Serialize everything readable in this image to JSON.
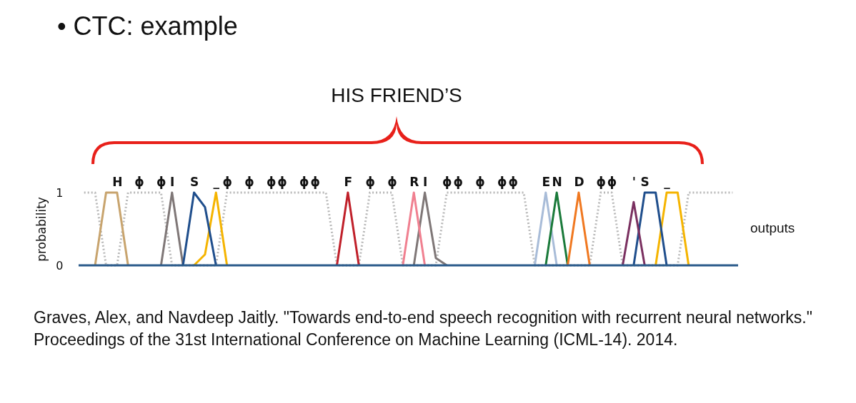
{
  "chart_data": {
    "type": "line",
    "title": "• CTC: example",
    "ylabel": "probability",
    "annotations": [
      "HIS FRIEND’S",
      "outputs",
      "Graves, Alex, and Navdeep Jaitly. \"Towards end-to-end speech recognition with recurrent neural networks.\" Proceedings of the 31st International Conference on Machine Learning (ICML-14). 2014."
    ],
    "ylim": [
      0,
      1
    ],
    "yticks": [
      0,
      1
    ],
    "grid": false,
    "legend": false,
    "ref_lines": [
      {
        "axis": "y",
        "value": 0,
        "color": "#2a5a8a"
      }
    ],
    "categories": [
      null,
      null,
      null,
      "H",
      null,
      "ϕ",
      null,
      "ϕ",
      "I",
      null,
      "S",
      null,
      "_",
      "ϕ",
      null,
      "ϕ",
      null,
      "ϕ",
      "ϕ",
      null,
      "ϕ",
      "ϕ",
      null,
      null,
      "F",
      null,
      "ϕ",
      null,
      "ϕ",
      null,
      "R",
      "I",
      null,
      "ϕ",
      "ϕ",
      null,
      "ϕ",
      null,
      "ϕ",
      "ϕ",
      null,
      null,
      "E",
      "N",
      null,
      "D",
      null,
      "ϕ",
      "ϕ",
      null,
      "'",
      "S",
      null,
      "_",
      null,
      null,
      null,
      null,
      null,
      null
    ],
    "series": [
      {
        "color": "#b8b8b8",
        "line_style": "dotted",
        "values": [
          1,
          1,
          0,
          0,
          1,
          1,
          1,
          1,
          0,
          0,
          0,
          0,
          0,
          1,
          1,
          1,
          1,
          1,
          1,
          1,
          1,
          1,
          1,
          0,
          0,
          0,
          1,
          1,
          1,
          0,
          0,
          0,
          0,
          1,
          1,
          1,
          1,
          1,
          1,
          1,
          1,
          0,
          0,
          0,
          0,
          0,
          0,
          1,
          1,
          0,
          0,
          0,
          0,
          0,
          0,
          1,
          1,
          1,
          1,
          1
        ]
      },
      {
        "color": "#c8a46e",
        "values": [
          null,
          0,
          1,
          1,
          0,
          null,
          null,
          null,
          null,
          null,
          null,
          null,
          null,
          null,
          null,
          null,
          null,
          null,
          null,
          null,
          null,
          null,
          null,
          null,
          null,
          null,
          null,
          null,
          null,
          null,
          null,
          null,
          null,
          null,
          null,
          null,
          null,
          null,
          null,
          null,
          null,
          null,
          null,
          null,
          null,
          null,
          null,
          null,
          null,
          null,
          null,
          null,
          null,
          null,
          null,
          null,
          null,
          null,
          null,
          null
        ]
      },
      {
        "color": "#7f7777",
        "values": [
          null,
          null,
          null,
          null,
          null,
          null,
          null,
          0,
          1,
          0,
          null,
          null,
          null,
          null,
          null,
          null,
          null,
          null,
          null,
          null,
          null,
          null,
          null,
          null,
          null,
          null,
          null,
          null,
          null,
          null,
          0,
          1,
          0.1,
          0,
          null,
          null,
          null,
          null,
          null,
          null,
          null,
          null,
          null,
          null,
          null,
          null,
          null,
          null,
          null,
          null,
          null,
          null,
          null,
          null,
          null,
          null,
          null,
          null,
          null,
          null
        ]
      },
      {
        "color": "#f5b400",
        "values": [
          null,
          null,
          null,
          null,
          null,
          null,
          null,
          null,
          null,
          null,
          0,
          0.15,
          1,
          0,
          null,
          null,
          null,
          null,
          null,
          null,
          null,
          null,
          null,
          null,
          null,
          null,
          null,
          null,
          null,
          null,
          null,
          null,
          null,
          null,
          null,
          null,
          null,
          null,
          null,
          null,
          null,
          null,
          null,
          null,
          null,
          null,
          null,
          null,
          null,
          null,
          null,
          null,
          0,
          1,
          1,
          0,
          null,
          null,
          null,
          null
        ]
      },
      {
        "color": "#1f4e8c",
        "values": [
          null,
          null,
          null,
          null,
          null,
          null,
          null,
          null,
          null,
          0,
          1,
          0.8,
          0,
          null,
          null,
          null,
          null,
          null,
          null,
          null,
          null,
          null,
          null,
          null,
          null,
          null,
          null,
          null,
          null,
          null,
          null,
          null,
          null,
          null,
          null,
          null,
          null,
          null,
          null,
          null,
          null,
          null,
          null,
          null,
          null,
          null,
          null,
          null,
          null,
          null,
          0,
          1,
          1,
          0,
          null,
          null,
          null,
          null,
          null,
          null
        ]
      },
      {
        "color": "#c0202a",
        "values": [
          null,
          null,
          null,
          null,
          null,
          null,
          null,
          null,
          null,
          null,
          null,
          null,
          null,
          null,
          null,
          null,
          null,
          null,
          null,
          null,
          null,
          null,
          null,
          0,
          1,
          0,
          null,
          null,
          null,
          null,
          null,
          null,
          null,
          null,
          null,
          null,
          null,
          null,
          null,
          null,
          null,
          null,
          null,
          null,
          null,
          null,
          null,
          null,
          null,
          null,
          null,
          null,
          null,
          null,
          null,
          null,
          null,
          null,
          null,
          null
        ]
      },
      {
        "color": "#f08090",
        "values": [
          null,
          null,
          null,
          null,
          null,
          null,
          null,
          null,
          null,
          null,
          null,
          null,
          null,
          null,
          null,
          null,
          null,
          null,
          null,
          null,
          null,
          null,
          null,
          null,
          null,
          null,
          null,
          null,
          null,
          0,
          1,
          0,
          null,
          null,
          null,
          null,
          null,
          null,
          null,
          null,
          null,
          null,
          null,
          null,
          null,
          null,
          null,
          null,
          null,
          null,
          null,
          null,
          null,
          null,
          null,
          null,
          null,
          null,
          null,
          null
        ]
      },
      {
        "color": "#a8bcd8",
        "values": [
          null,
          null,
          null,
          null,
          null,
          null,
          null,
          null,
          null,
          null,
          null,
          null,
          null,
          null,
          null,
          null,
          null,
          null,
          null,
          null,
          null,
          null,
          null,
          null,
          null,
          null,
          null,
          null,
          null,
          null,
          null,
          null,
          null,
          null,
          null,
          null,
          null,
          null,
          null,
          null,
          null,
          0,
          1,
          0,
          null,
          null,
          null,
          null,
          null,
          null,
          null,
          null,
          null,
          null,
          null,
          null,
          null,
          null,
          null,
          null
        ]
      },
      {
        "color": "#1a7a3a",
        "values": [
          null,
          null,
          null,
          null,
          null,
          null,
          null,
          null,
          null,
          null,
          null,
          null,
          null,
          null,
          null,
          null,
          null,
          null,
          null,
          null,
          null,
          null,
          null,
          null,
          null,
          null,
          null,
          null,
          null,
          null,
          null,
          null,
          null,
          null,
          null,
          null,
          null,
          null,
          null,
          null,
          null,
          null,
          0,
          1,
          0,
          null,
          null,
          null,
          null,
          null,
          null,
          null,
          null,
          null,
          null,
          null,
          null,
          null,
          null,
          null
        ]
      },
      {
        "color": "#f07820",
        "values": [
          null,
          null,
          null,
          null,
          null,
          null,
          null,
          null,
          null,
          null,
          null,
          null,
          null,
          null,
          null,
          null,
          null,
          null,
          null,
          null,
          null,
          null,
          null,
          null,
          null,
          null,
          null,
          null,
          null,
          null,
          null,
          null,
          null,
          null,
          null,
          null,
          null,
          null,
          null,
          null,
          null,
          null,
          null,
          null,
          0,
          1,
          0,
          null,
          null,
          null,
          null,
          null,
          null,
          null,
          null,
          null,
          null,
          null,
          null,
          null
        ]
      },
      {
        "color": "#7a3060",
        "values": [
          null,
          null,
          null,
          null,
          null,
          null,
          null,
          null,
          null,
          null,
          null,
          null,
          null,
          null,
          null,
          null,
          null,
          null,
          null,
          null,
          null,
          null,
          null,
          null,
          null,
          null,
          null,
          null,
          null,
          null,
          null,
          null,
          null,
          null,
          null,
          null,
          null,
          null,
          null,
          null,
          null,
          null,
          null,
          null,
          null,
          null,
          null,
          null,
          null,
          0,
          0.87,
          0,
          null,
          null,
          null,
          null,
          null,
          null,
          null,
          null
        ]
      }
    ]
  }
}
